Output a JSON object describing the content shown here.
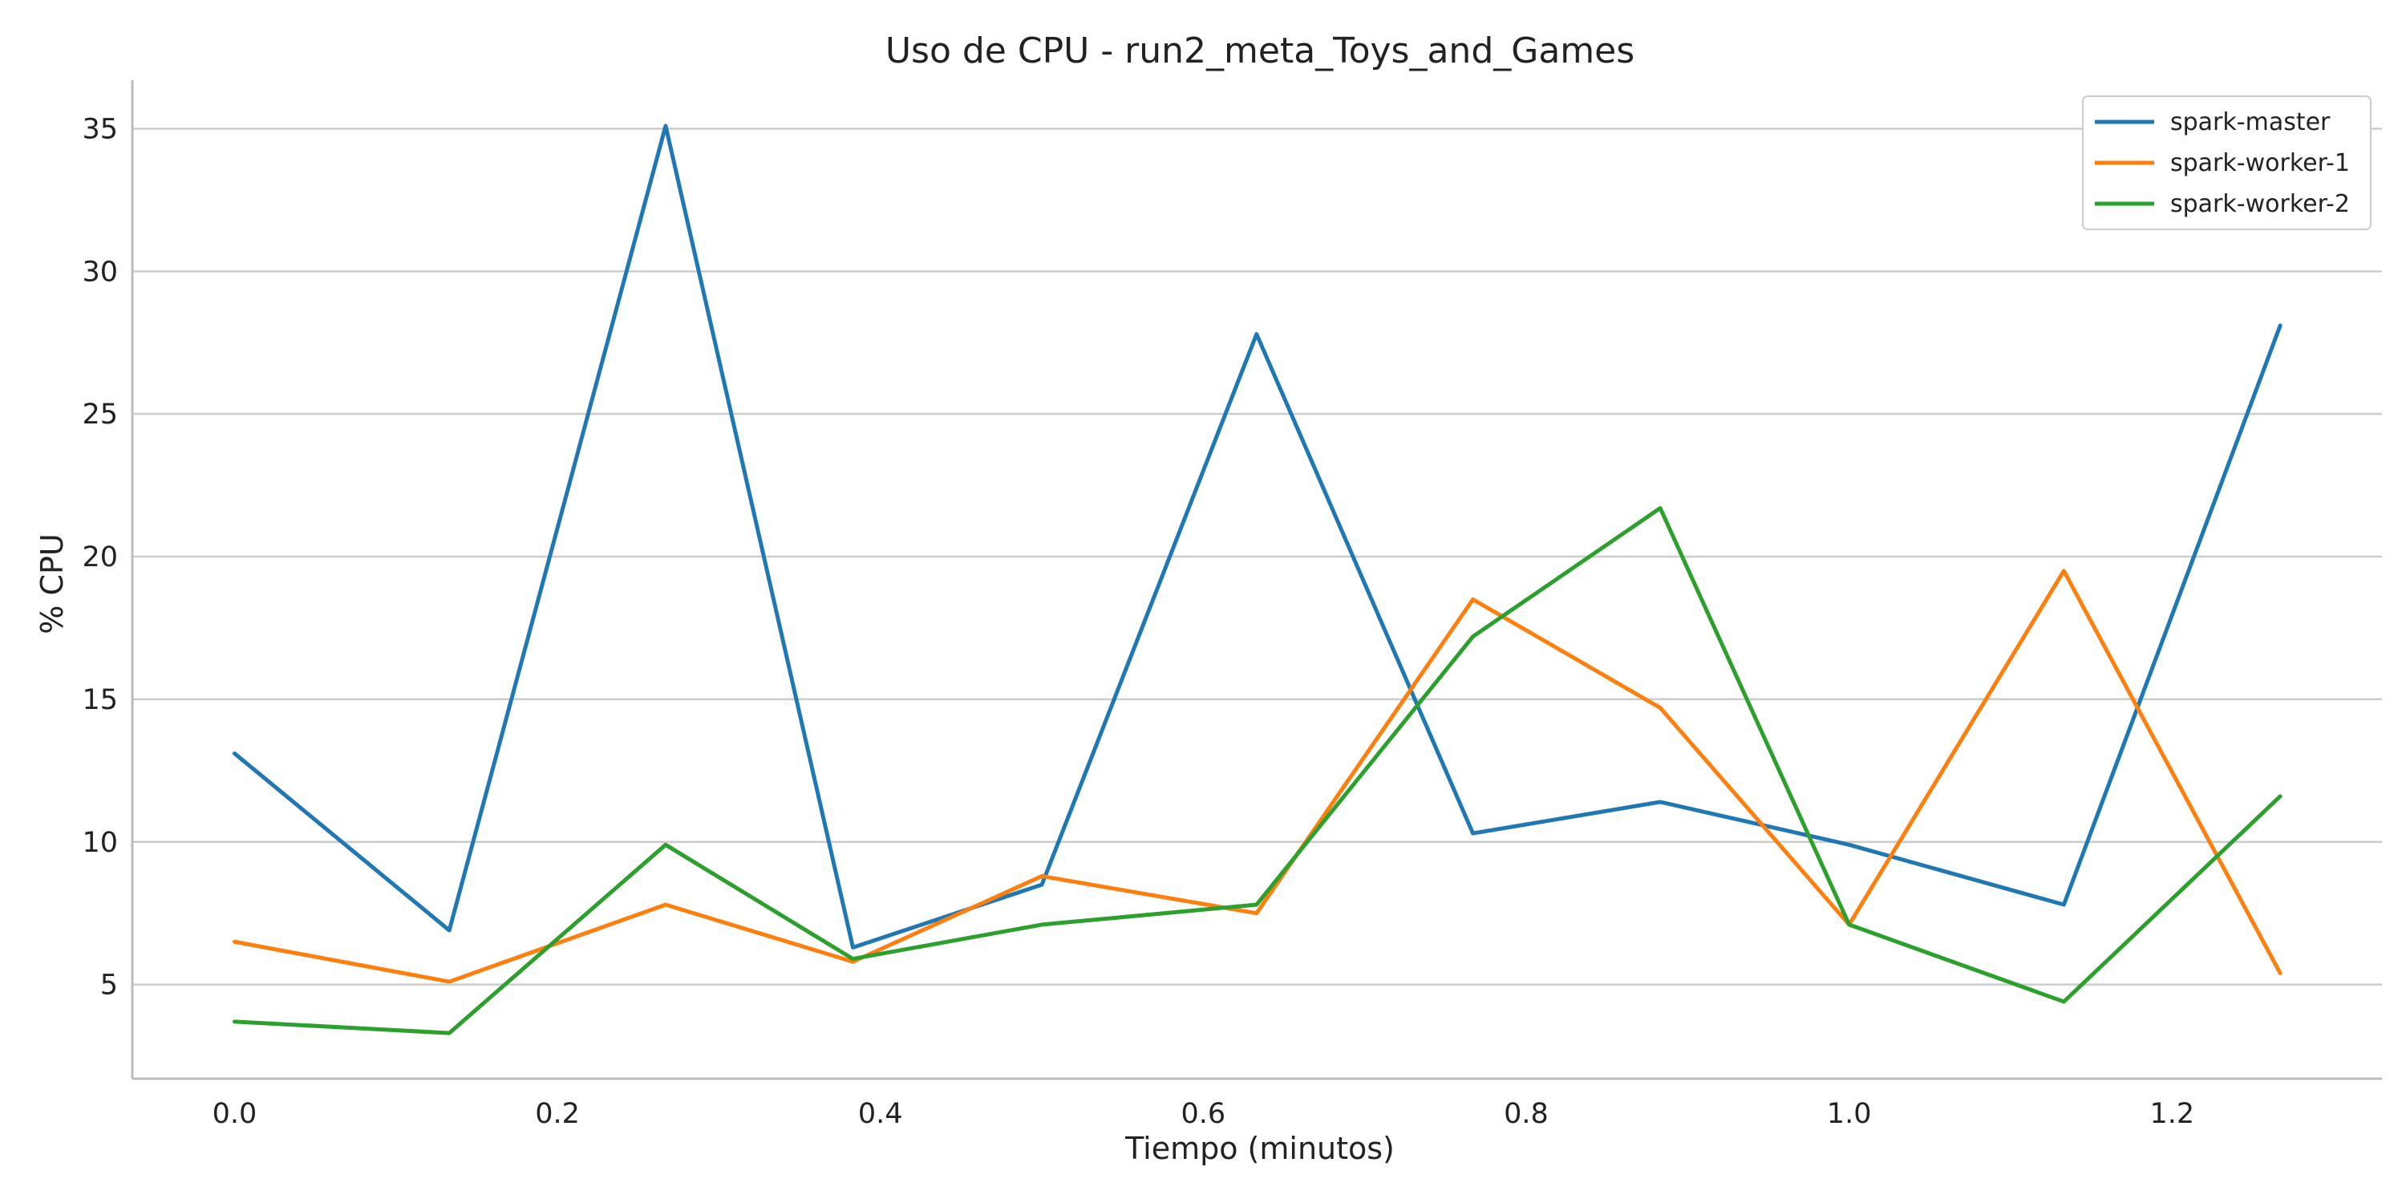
{
  "chart_data": {
    "type": "line",
    "title": "Uso de CPU - run2_meta_Toys_and_Games",
    "xlabel": "Tiempo (minutos)",
    "ylabel": "% CPU",
    "xlim": [
      -0.0633,
      1.33
    ],
    "ylim": [
      1.7,
      36.7
    ],
    "xticks": [
      0.0,
      0.2,
      0.4,
      0.6,
      0.8,
      1.0,
      1.2
    ],
    "xtick_labels": [
      "0.0",
      "0.2",
      "0.4",
      "0.6",
      "0.8",
      "1.0",
      "1.2"
    ],
    "yticks": [
      5,
      10,
      15,
      20,
      25,
      30,
      35
    ],
    "ytick_labels": [
      "5",
      "10",
      "15",
      "20",
      "25",
      "30",
      "35"
    ],
    "grid": "horizontal",
    "legend_position": "top-right",
    "x": [
      0.0,
      0.133,
      0.267,
      0.383,
      0.5,
      0.633,
      0.767,
      0.883,
      1.0,
      1.133,
      1.267
    ],
    "series": [
      {
        "name": "spark-master",
        "color": "#1f77b4",
        "values": [
          13.1,
          6.9,
          35.1,
          6.3,
          8.5,
          27.8,
          10.3,
          11.4,
          9.9,
          7.8,
          28.1
        ]
      },
      {
        "name": "spark-worker-1",
        "color": "#ff7f0e",
        "values": [
          6.5,
          5.1,
          7.8,
          5.8,
          8.8,
          7.5,
          18.5,
          14.7,
          7.1,
          19.5,
          5.4
        ]
      },
      {
        "name": "spark-worker-2",
        "color": "#2ca02c",
        "values": [
          3.7,
          3.3,
          9.9,
          5.9,
          7.1,
          7.8,
          17.2,
          21.7,
          7.1,
          4.4,
          11.6
        ]
      }
    ]
  }
}
